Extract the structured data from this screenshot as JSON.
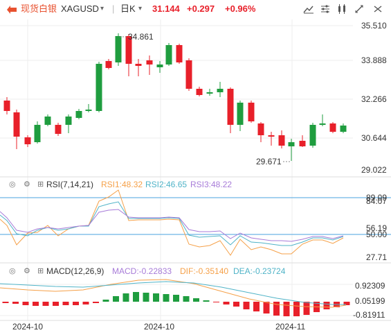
{
  "header": {
    "brand": "现货白银",
    "symbol": "XAGUSD",
    "period": "日K",
    "price": "31.144",
    "change": "+0.297",
    "change_pct": "+0.96%",
    "colors": {
      "brand": "#e8512f",
      "up": "#e8202a",
      "period_text": "#333333"
    },
    "icons": [
      "dropdown-icon",
      "chart-style-icon",
      "indicator-icon",
      "compare-icon",
      "draw-icon",
      "fullscreen-icon",
      "settings-icon"
    ]
  },
  "main_chart": {
    "y_ticks": [
      "35.510",
      "33.888",
      "32.266",
      "30.644",
      "29.022"
    ],
    "high_label": "34.861",
    "low_label": "29.671",
    "colors": {
      "up": "#1f9d3f",
      "down": "#e8202a"
    }
  },
  "rsi": {
    "title": "RSI(7,14,21)",
    "rsi1": "RSI1:48.32",
    "rsi2": "RSI2:46.65",
    "rsi3": "RSI3:48.22",
    "y_ticks": [
      "89.09",
      "84.07",
      "56.19",
      "50.00",
      "27.71"
    ],
    "colors": {
      "rsi1": "#f5a048",
      "rsi2": "#4fb3c7",
      "rsi3": "#a77bd8",
      "ref": "#4aa3df"
    }
  },
  "macd": {
    "title": "MACD(12,26,9)",
    "macd": "MACD:-0.22833",
    "dif": "DIF:-0.35140",
    "dea": "DEA:-0.23724",
    "y_ticks": [
      "0.92309",
      "0.05199",
      "-0.81911"
    ],
    "colors": {
      "macd": "#a77bd8",
      "dif": "#f5a048",
      "dea": "#4fb3c7"
    }
  },
  "x_axis": {
    "labels": [
      "2024-10",
      "2024-10",
      "2024-11"
    ]
  }
}
